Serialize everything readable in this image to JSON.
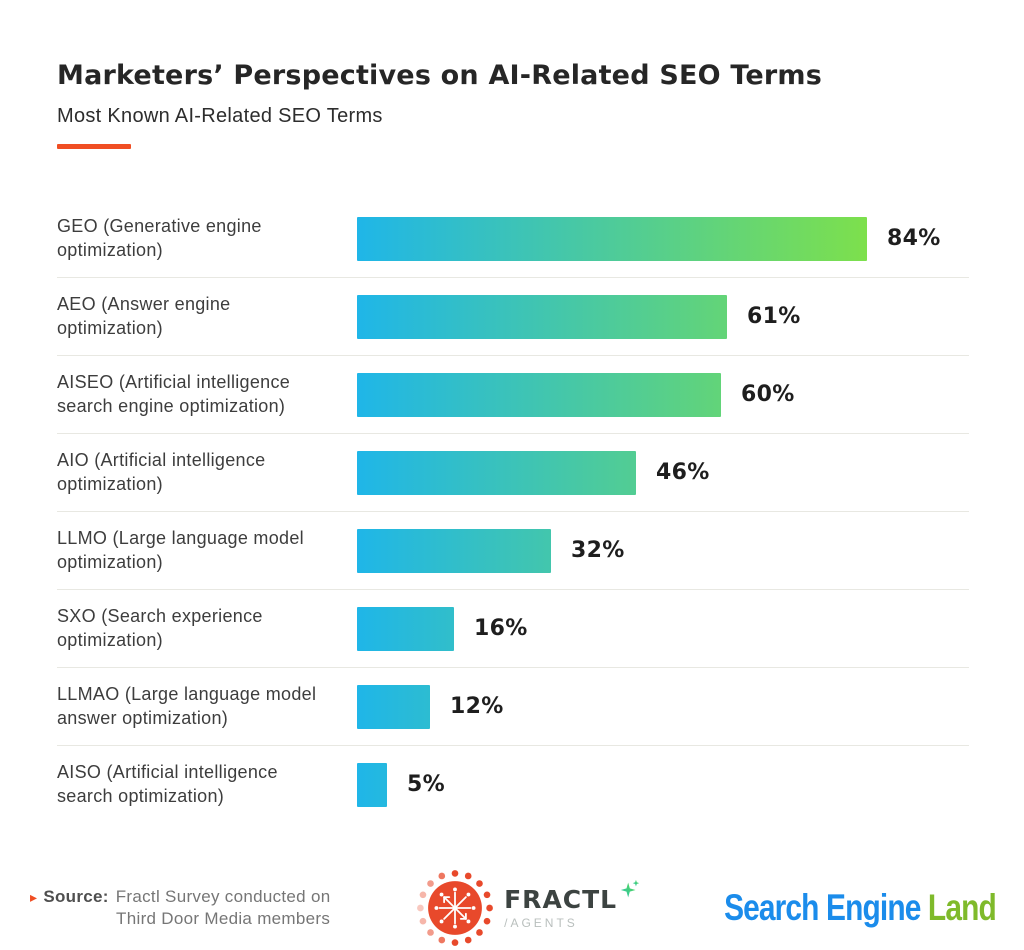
{
  "header": {
    "title": "Marketers’ Perspectives on AI-Related SEO Terms",
    "subtitle": "Most Known AI-Related SEO Terms"
  },
  "chart_data": {
    "type": "bar",
    "orientation": "horizontal",
    "title": "Marketers’ Perspectives on AI-Related SEO Terms",
    "subtitle": "Most Known AI-Related SEO Terms",
    "categories": [
      "GEO (Generative engine optimization)",
      "AEO (Answer engine optimization)",
      "AISEO (Artificial intelligence search engine optimization)",
      "AIO (Artificial intelligence optimization)",
      "LLMO (Large language model optimization)",
      "SXO (Search experience optimization)",
      "LLMAO (Large language model answer optimization)",
      "AISO (Artificial intelligence search optimization)"
    ],
    "values": [
      84,
      61,
      60,
      46,
      32,
      16,
      12,
      5
    ],
    "value_suffix": "%",
    "xlim": [
      0,
      84
    ],
    "axes_shown": false,
    "grid": false,
    "legend": "none",
    "value_labels": "end-of-bar",
    "bar_gradient": [
      "#1FB6E8",
      "#7DE04C"
    ]
  },
  "footer": {
    "source_marker": "▸",
    "source_label": "Source:",
    "source_line1": "Fractl Survey conducted on",
    "source_line2": "Third Door Media members",
    "fractl_logo": {
      "wordmark": "FRACTL",
      "subtext": "/AGENTS"
    },
    "search_engine_land_logo": {
      "text_blue": "Search Engine",
      "text_green": "Land"
    }
  },
  "colors": {
    "accent": "#F04E23",
    "bar_start": "#1FB6E8",
    "bar_end": "#7DE04C",
    "divider": "#E8E8E2",
    "sel_blue": "#1B8CEB",
    "sel_green": "#7FBA2B",
    "fractl_orange": "#E8492B"
  }
}
